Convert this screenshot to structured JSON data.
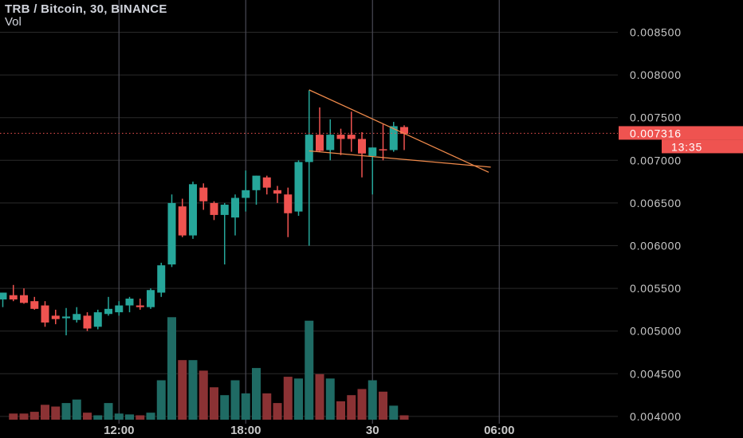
{
  "legend": {
    "title": "TRB / Bitcoin, 30, BINANCE",
    "sub": "Vol"
  },
  "colors": {
    "bg": "#000000",
    "grid": "#2a2a2a",
    "axis_text": "#c8c8c8",
    "up": "#26a69a",
    "down": "#ef5350",
    "up_vol": "#1f6b64",
    "down_vol": "#8b3234",
    "trendline": "#f08a4b",
    "price_line": "#ef5350",
    "vline": "#4a4a55"
  },
  "chart_data": {
    "type": "candlestick",
    "title": "TRB / Bitcoin, 30, BINANCE",
    "ylim": [
      0.0039,
      0.0089
    ],
    "y_ticks": [
      "0.008500",
      "0.008000",
      "0.007500",
      "0.007000",
      "0.006500",
      "0.006000",
      "0.005500",
      "0.005000",
      "0.004500",
      "0.004000"
    ],
    "y_tick_values": [
      0.0085,
      0.008,
      0.0075,
      0.007,
      0.0065,
      0.006,
      0.0055,
      0.005,
      0.0045,
      0.004
    ],
    "x_ticks": [
      {
        "label": "12:00",
        "bar": 11,
        "bold": false
      },
      {
        "label": "18:00",
        "bar": 23,
        "bold": false
      },
      {
        "label": "30",
        "bar": 35,
        "bold": true
      },
      {
        "label": "06:00",
        "bar": 47,
        "bold": false
      }
    ],
    "last_price": {
      "value": 0.007316,
      "label": "0.007316",
      "countdown": "13:35"
    },
    "candles": [
      {
        "o": 0.00537,
        "h": 0.00545,
        "l": 0.00528,
        "c": 0.00545,
        "v": 0.0
      },
      {
        "o": 0.00542,
        "h": 0.00554,
        "l": 0.00535,
        "c": 0.00537,
        "v": 0.07
      },
      {
        "o": 0.00542,
        "h": 0.0055,
        "l": 0.00532,
        "c": 0.00533,
        "v": 0.07
      },
      {
        "o": 0.00535,
        "h": 0.0054,
        "l": 0.00525,
        "c": 0.00526,
        "v": 0.09
      },
      {
        "o": 0.0053,
        "h": 0.00535,
        "l": 0.00505,
        "c": 0.0051,
        "v": 0.17
      },
      {
        "o": 0.00518,
        "h": 0.00525,
        "l": 0.00508,
        "c": 0.00514,
        "v": 0.15
      },
      {
        "o": 0.00515,
        "h": 0.00527,
        "l": 0.00495,
        "c": 0.00517,
        "v": 0.19
      },
      {
        "o": 0.00513,
        "h": 0.00528,
        "l": 0.0051,
        "c": 0.0052,
        "v": 0.23
      },
      {
        "o": 0.00518,
        "h": 0.00522,
        "l": 0.005,
        "c": 0.00503,
        "v": 0.08
      },
      {
        "o": 0.00505,
        "h": 0.00525,
        "l": 0.00502,
        "c": 0.00522,
        "v": 0.05
      },
      {
        "o": 0.0052,
        "h": 0.0054,
        "l": 0.00518,
        "c": 0.00526,
        "v": 0.19
      },
      {
        "o": 0.00522,
        "h": 0.00535,
        "l": 0.00518,
        "c": 0.0053,
        "v": 0.07
      },
      {
        "o": 0.0053,
        "h": 0.0054,
        "l": 0.00522,
        "c": 0.00538,
        "v": 0.06
      },
      {
        "o": 0.0053,
        "h": 0.00538,
        "l": 0.00525,
        "c": 0.00528,
        "v": 0.05
      },
      {
        "o": 0.00528,
        "h": 0.0055,
        "l": 0.00526,
        "c": 0.00548,
        "v": 0.08
      },
      {
        "o": 0.00545,
        "h": 0.0058,
        "l": 0.0054,
        "c": 0.00577,
        "v": 0.45
      },
      {
        "o": 0.00578,
        "h": 0.0066,
        "l": 0.00575,
        "c": 0.0065,
        "v": 1.17
      },
      {
        "o": 0.00646,
        "h": 0.00655,
        "l": 0.0061,
        "c": 0.00612,
        "v": 0.68
      },
      {
        "o": 0.00612,
        "h": 0.00675,
        "l": 0.00608,
        "c": 0.00672,
        "v": 0.68
      },
      {
        "o": 0.00668,
        "h": 0.00673,
        "l": 0.00642,
        "c": 0.00652,
        "v": 0.56
      },
      {
        "o": 0.0065,
        "h": 0.00652,
        "l": 0.0063,
        "c": 0.00636,
        "v": 0.37
      },
      {
        "o": 0.00636,
        "h": 0.0065,
        "l": 0.00578,
        "c": 0.00648,
        "v": 0.28
      },
      {
        "o": 0.00633,
        "h": 0.0066,
        "l": 0.00612,
        "c": 0.00656,
        "v": 0.45
      },
      {
        "o": 0.00656,
        "h": 0.00688,
        "l": 0.0064,
        "c": 0.00665,
        "v": 0.3
      },
      {
        "o": 0.00665,
        "h": 0.00682,
        "l": 0.00648,
        "c": 0.00682,
        "v": 0.59
      },
      {
        "o": 0.0068,
        "h": 0.00682,
        "l": 0.0066,
        "c": 0.00668,
        "v": 0.3
      },
      {
        "o": 0.00665,
        "h": 0.0067,
        "l": 0.0065,
        "c": 0.00661,
        "v": 0.19
      },
      {
        "o": 0.0066,
        "h": 0.00668,
        "l": 0.0061,
        "c": 0.00638,
        "v": 0.49
      },
      {
        "o": 0.0064,
        "h": 0.007,
        "l": 0.00635,
        "c": 0.00698,
        "v": 0.47
      },
      {
        "o": 0.00698,
        "h": 0.00782,
        "l": 0.006,
        "c": 0.0073,
        "v": 1.13
      },
      {
        "o": 0.0073,
        "h": 0.00762,
        "l": 0.0071,
        "c": 0.00711,
        "v": 0.52
      },
      {
        "o": 0.00712,
        "h": 0.00748,
        "l": 0.007,
        "c": 0.0073,
        "v": 0.47
      },
      {
        "o": 0.0073,
        "h": 0.00737,
        "l": 0.00706,
        "c": 0.00725,
        "v": 0.21
      },
      {
        "o": 0.0073,
        "h": 0.00757,
        "l": 0.0071,
        "c": 0.00725,
        "v": 0.28
      },
      {
        "o": 0.00725,
        "h": 0.00733,
        "l": 0.0068,
        "c": 0.00708,
        "v": 0.35
      },
      {
        "o": 0.00705,
        "h": 0.00715,
        "l": 0.0066,
        "c": 0.00715,
        "v": 0.45
      },
      {
        "o": 0.00713,
        "h": 0.00742,
        "l": 0.007,
        "c": 0.00712,
        "v": 0.32
      },
      {
        "o": 0.00712,
        "h": 0.00745,
        "l": 0.0071,
        "c": 0.0074,
        "v": 0.16
      },
      {
        "o": 0.00739,
        "h": 0.00741,
        "l": 0.00712,
        "c": 0.00731,
        "v": 0.05
      }
    ],
    "trendlines": [
      {
        "from": {
          "bar": 29,
          "price": 0.007825
        },
        "to": {
          "bar": 46.0,
          "price": 0.00686
        }
      },
      {
        "from": {
          "bar": 29,
          "price": 0.00711
        },
        "to": {
          "bar": 46.2,
          "price": 0.00692
        }
      }
    ]
  }
}
